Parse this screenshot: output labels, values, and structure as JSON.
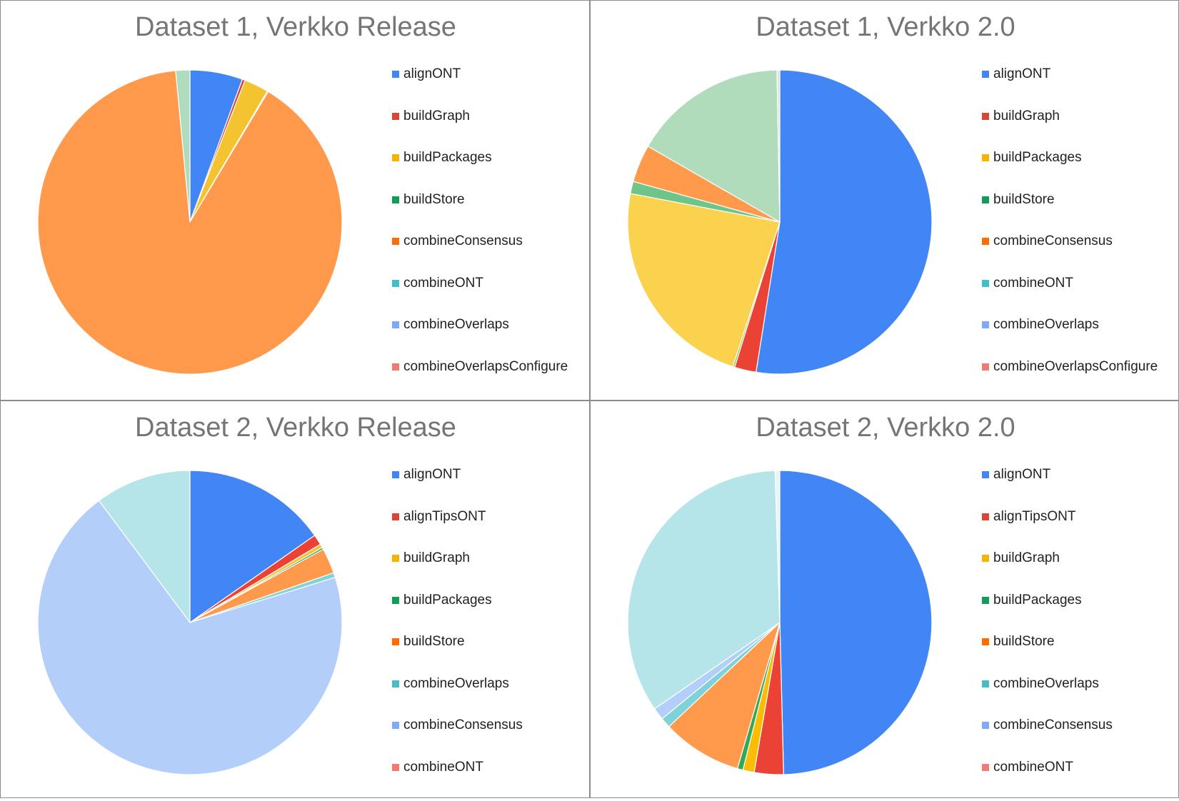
{
  "chart_data": [
    {
      "type": "pie",
      "title": "Dataset 1, Verkko Release",
      "legend_position": "right",
      "slices": [
        {
          "label": "alignONT",
          "value": 5.6,
          "color": "#4285f4"
        },
        {
          "label": "buildGraph",
          "value": 0.3,
          "color": "#db4437"
        },
        {
          "label": "buildPackages",
          "value": 2.6,
          "color": "#f4c430"
        },
        {
          "label": "buildStore",
          "value": 0.1,
          "color": "#0f9d58"
        },
        {
          "label": "combineConsensus",
          "value": 89.9,
          "color": "#ff9a4d"
        },
        {
          "label": "combineONT",
          "value": 1.5,
          "color": "#aedcbc"
        }
      ],
      "legend": [
        {
          "label": "alignONT",
          "color": "#4285f4"
        },
        {
          "label": "buildGraph",
          "color": "#db4437"
        },
        {
          "label": "buildPackages",
          "color": "#f4b400"
        },
        {
          "label": "buildStore",
          "color": "#0f9d58"
        },
        {
          "label": "combineConsensus",
          "color": "#ff6d01"
        },
        {
          "label": "combineONT",
          "color": "#46bdc6"
        },
        {
          "label": "combineOverlaps",
          "color": "#7baaf7"
        },
        {
          "label": "combineOverlapsConfigure",
          "color": "#f07b72"
        }
      ]
    },
    {
      "type": "pie",
      "title": "Dataset 1, Verkko 2.0",
      "legend_position": "right",
      "slices": [
        {
          "label": "alignONT",
          "value": 52.5,
          "color": "#4285f4"
        },
        {
          "label": "buildGraph",
          "value": 2.3,
          "color": "#ea4335"
        },
        {
          "label": "buildStore",
          "value": 0.2,
          "color": "#8bc34a"
        },
        {
          "label": "buildPackages",
          "value": 23.0,
          "color": "#fbd24e"
        },
        {
          "label": "combineOverlaps",
          "value": 1.3,
          "color": "#6fc48a"
        },
        {
          "label": "combineConsensus",
          "value": 4.0,
          "color": "#ff9a4d"
        },
        {
          "label": "combineONT",
          "value": 16.4,
          "color": "#b0dcbc"
        },
        {
          "label": "combineOverlapsConfigure",
          "value": 0.3,
          "color": "#e0e0e0"
        }
      ],
      "legend": [
        {
          "label": "alignONT",
          "color": "#4285f4"
        },
        {
          "label": "buildGraph",
          "color": "#db4437"
        },
        {
          "label": "buildPackages",
          "color": "#f4b400"
        },
        {
          "label": "buildStore",
          "color": "#0f9d58"
        },
        {
          "label": "combineConsensus",
          "color": "#ff6d01"
        },
        {
          "label": "combineONT",
          "color": "#46bdc6"
        },
        {
          "label": "combineOverlaps",
          "color": "#7baaf7"
        },
        {
          "label": "combineOverlapsConfigure",
          "color": "#f07b72"
        }
      ]
    },
    {
      "type": "pie",
      "title": "Dataset 2, Verkko Release",
      "legend_position": "right",
      "slices": [
        {
          "label": "alignONT",
          "value": 15.3,
          "color": "#4285f4"
        },
        {
          "label": "alignTipsONT",
          "value": 1.1,
          "color": "#ea4335"
        },
        {
          "label": "buildGraph",
          "value": 0.4,
          "color": "#f4c430"
        },
        {
          "label": "buildPackages",
          "value": 0.2,
          "color": "#0f9d58"
        },
        {
          "label": "buildStore",
          "value": 2.7,
          "color": "#ff9a4d"
        },
        {
          "label": "combineOverlaps",
          "value": 0.5,
          "color": "#7fd3d8"
        },
        {
          "label": "combineConsensus",
          "value": 69.6,
          "color": "#b4cefa"
        },
        {
          "label": "combineONT",
          "value": 10.2,
          "color": "#b5e5e8"
        }
      ],
      "legend": [
        {
          "label": "alignONT",
          "color": "#4285f4"
        },
        {
          "label": "alignTipsONT",
          "color": "#db4437"
        },
        {
          "label": "buildGraph",
          "color": "#f4b400"
        },
        {
          "label": "buildPackages",
          "color": "#0f9d58"
        },
        {
          "label": "buildStore",
          "color": "#ff6d01"
        },
        {
          "label": "combineOverlaps",
          "color": "#46bdc6"
        },
        {
          "label": "combineConsensus",
          "color": "#7baaf7"
        },
        {
          "label": "combineONT",
          "color": "#f07b72"
        }
      ]
    },
    {
      "type": "pie",
      "title": "Dataset 2, Verkko 2.0",
      "legend_position": "right",
      "slices": [
        {
          "label": "alignONT",
          "value": 49.6,
          "color": "#4285f4"
        },
        {
          "label": "alignTipsONT",
          "value": 3.1,
          "color": "#ea4335"
        },
        {
          "label": "buildGraph",
          "value": 1.2,
          "color": "#fbbc04"
        },
        {
          "label": "buildPackages",
          "value": 0.6,
          "color": "#34a853"
        },
        {
          "label": "buildStore",
          "value": 8.5,
          "color": "#ff9a4d"
        },
        {
          "label": "combineOverlaps",
          "value": 1.1,
          "color": "#7fd3d8"
        },
        {
          "label": "combineConsensus",
          "value": 1.3,
          "color": "#b4cefa"
        },
        {
          "label": "combineONT",
          "value": 34.1,
          "color": "#b5e5e8"
        },
        {
          "label": "",
          "value": 0.5,
          "color": "#e8f6f8"
        }
      ],
      "legend": [
        {
          "label": "alignONT",
          "color": "#4285f4"
        },
        {
          "label": "alignTipsONT",
          "color": "#db4437"
        },
        {
          "label": "buildGraph",
          "color": "#f4b400"
        },
        {
          "label": "buildPackages",
          "color": "#0f9d58"
        },
        {
          "label": "buildStore",
          "color": "#ff6d01"
        },
        {
          "label": "combineOverlaps",
          "color": "#46bdc6"
        },
        {
          "label": "combineConsensus",
          "color": "#7baaf7"
        },
        {
          "label": "combineONT",
          "color": "#f07b72"
        }
      ]
    }
  ]
}
